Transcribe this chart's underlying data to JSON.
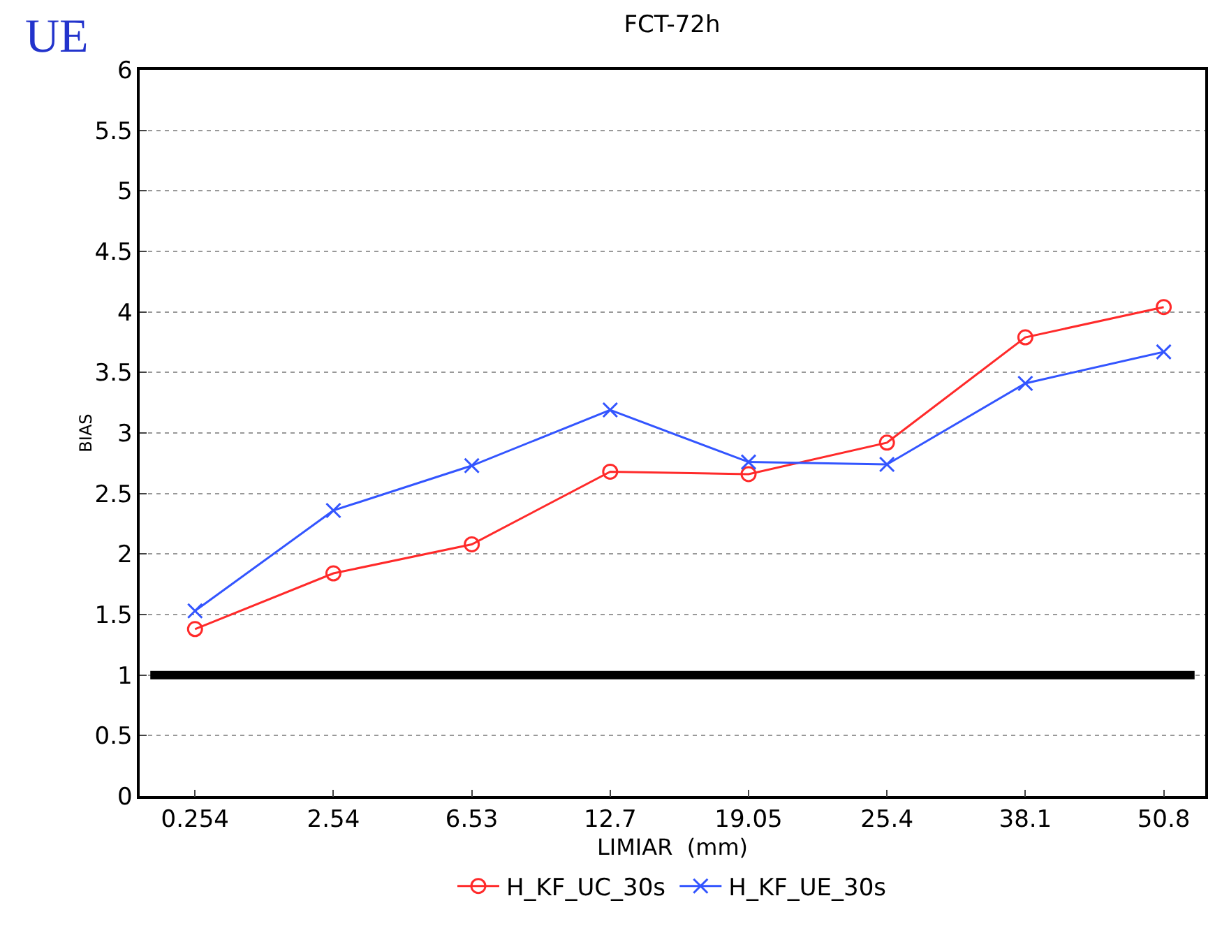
{
  "chart_data": {
    "type": "line",
    "title": "FCT-72h",
    "xlabel": "LIMIAR  (mm)",
    "ylabel": "BIAS",
    "categories": [
      "0.254",
      "2.54",
      "6.53",
      "12.7",
      "19.05",
      "25.4",
      "38.1",
      "50.8"
    ],
    "series": [
      {
        "name": "H_KF_UC_30s",
        "color": "#ff2a2a",
        "marker": "circle",
        "values": [
          1.38,
          1.84,
          2.08,
          2.68,
          2.66,
          2.92,
          3.79,
          4.04
        ]
      },
      {
        "name": "H_KF_UE_30s",
        "color": "#3355ff",
        "marker": "cross",
        "values": [
          1.53,
          2.36,
          2.73,
          3.19,
          2.76,
          2.74,
          3.41,
          3.67
        ]
      }
    ],
    "ylim": [
      0,
      6
    ],
    "yticks": [
      0,
      0.5,
      1,
      1.5,
      2,
      2.5,
      3,
      3.5,
      4,
      4.5,
      5,
      5.5,
      6
    ],
    "grid": "y",
    "legend": "bottom",
    "line_style": "solid",
    "ref_lines": [
      {
        "axis": "y",
        "value": 1,
        "color": "#000000"
      }
    ],
    "annotations": [
      "UE"
    ]
  }
}
